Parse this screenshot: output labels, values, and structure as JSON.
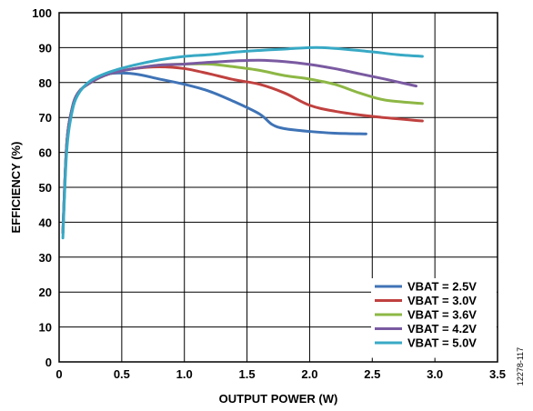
{
  "figure_id": "12278-117",
  "chart_data": {
    "type": "line",
    "xlabel": "OUTPUT POWER (W)",
    "ylabel": "EFFICIENCY (%)",
    "xlim": [
      0,
      3.5
    ],
    "ylim": [
      0,
      100
    ],
    "xticks": [
      "0",
      "0.5",
      "1.0",
      "1.5",
      "2.0",
      "2.5",
      "3.0",
      "3.5"
    ],
    "yticks": [
      "0",
      "10",
      "20",
      "30",
      "40",
      "50",
      "60",
      "70",
      "80",
      "90",
      "100"
    ],
    "grid": true,
    "legend_position": "bottom-right",
    "series": [
      {
        "name": "VBAT = 2.5V",
        "color": "#3f73b6",
        "points": [
          [
            0.03,
            37
          ],
          [
            0.06,
            62
          ],
          [
            0.1,
            72
          ],
          [
            0.15,
            77
          ],
          [
            0.25,
            80
          ],
          [
            0.4,
            82.5
          ],
          [
            0.6,
            82.5
          ],
          [
            0.8,
            81
          ],
          [
            1.0,
            79.5
          ],
          [
            1.2,
            77.5
          ],
          [
            1.4,
            74.5
          ],
          [
            1.6,
            71
          ],
          [
            1.7,
            68
          ],
          [
            1.8,
            66.8
          ],
          [
            2.0,
            66
          ],
          [
            2.2,
            65.5
          ],
          [
            2.45,
            65.3
          ]
        ]
      },
      {
        "name": "VBAT = 3.0V",
        "color": "#c0413f",
        "points": [
          [
            0.03,
            37
          ],
          [
            0.06,
            62
          ],
          [
            0.1,
            72
          ],
          [
            0.15,
            77
          ],
          [
            0.25,
            80
          ],
          [
            0.4,
            82.5
          ],
          [
            0.6,
            84
          ],
          [
            0.8,
            84.5
          ],
          [
            1.0,
            84
          ],
          [
            1.2,
            82.5
          ],
          [
            1.4,
            80.8
          ],
          [
            1.6,
            79.5
          ],
          [
            1.8,
            77
          ],
          [
            2.0,
            73.5
          ],
          [
            2.2,
            71.8
          ],
          [
            2.5,
            70.3
          ],
          [
            2.9,
            69
          ]
        ]
      },
      {
        "name": "VBAT = 3.6V",
        "color": "#8db745",
        "points": [
          [
            0.03,
            37
          ],
          [
            0.06,
            62
          ],
          [
            0.1,
            72
          ],
          [
            0.15,
            77
          ],
          [
            0.25,
            80
          ],
          [
            0.4,
            82.5
          ],
          [
            0.6,
            84
          ],
          [
            0.8,
            85
          ],
          [
            1.0,
            85.3
          ],
          [
            1.2,
            85.3
          ],
          [
            1.4,
            84.5
          ],
          [
            1.6,
            83.5
          ],
          [
            1.8,
            82
          ],
          [
            2.0,
            81
          ],
          [
            2.2,
            79.5
          ],
          [
            2.4,
            77
          ],
          [
            2.6,
            75
          ],
          [
            2.9,
            74
          ]
        ]
      },
      {
        "name": "VBAT = 4.2V",
        "color": "#7a5aa1",
        "points": [
          [
            0.03,
            37
          ],
          [
            0.06,
            62
          ],
          [
            0.1,
            72
          ],
          [
            0.15,
            77
          ],
          [
            0.25,
            80
          ],
          [
            0.4,
            82.5
          ],
          [
            0.6,
            84
          ],
          [
            0.8,
            85
          ],
          [
            1.0,
            85.3
          ],
          [
            1.2,
            85.8
          ],
          [
            1.4,
            86.2
          ],
          [
            1.6,
            86.4
          ],
          [
            1.8,
            86
          ],
          [
            2.0,
            85.2
          ],
          [
            2.2,
            84
          ],
          [
            2.4,
            82.5
          ],
          [
            2.6,
            81
          ],
          [
            2.85,
            79
          ]
        ]
      },
      {
        "name": "VBAT = 5.0V",
        "color": "#38a9c5",
        "points": [
          [
            0.03,
            35.5
          ],
          [
            0.06,
            60
          ],
          [
            0.1,
            71
          ],
          [
            0.15,
            76.5
          ],
          [
            0.25,
            80.5
          ],
          [
            0.4,
            83
          ],
          [
            0.6,
            85
          ],
          [
            0.8,
            86.5
          ],
          [
            1.0,
            87.5
          ],
          [
            1.2,
            88
          ],
          [
            1.4,
            88.7
          ],
          [
            1.6,
            89.2
          ],
          [
            1.8,
            89.6
          ],
          [
            2.0,
            90
          ],
          [
            2.1,
            90
          ],
          [
            2.3,
            89.5
          ],
          [
            2.5,
            88.8
          ],
          [
            2.7,
            88
          ],
          [
            2.9,
            87.5
          ]
        ]
      }
    ]
  }
}
